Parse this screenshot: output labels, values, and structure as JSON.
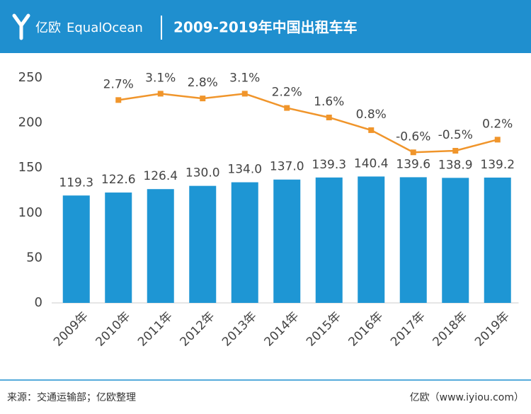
{
  "header": {
    "logo_cn": "亿欧",
    "logo_en": "EqualOcean"
  },
  "chart_data": {
    "type": "bar",
    "title": "2009-2019年中国出租车车",
    "categories": [
      "2009年",
      "2010年",
      "2011年",
      "2012年",
      "2013年",
      "2014年",
      "2015年",
      "2016年",
      "2017年",
      "2018年",
      "2019年"
    ],
    "series": [
      {
        "type": "bar",
        "color": "#1e96d4",
        "values": [
          119.3,
          122.6,
          126.4,
          130.0,
          134.0,
          137.0,
          139.3,
          140.4,
          139.6,
          138.9,
          139.2
        ],
        "value_labels": [
          "119.3",
          "122.6",
          "126.4",
          "130.0",
          "134.0",
          "137.0",
          "139.3",
          "140.4",
          "139.6",
          "138.9",
          "139.2"
        ]
      },
      {
        "type": "line",
        "axis": "y2",
        "color": "#f0952b",
        "values": [
          null,
          2.7,
          3.1,
          2.8,
          3.1,
          2.2,
          1.6,
          0.8,
          -0.6,
          -0.5,
          0.2
        ],
        "value_labels": [
          null,
          "2.7%",
          "3.1%",
          "2.8%",
          "3.1%",
          "2.2%",
          "1.6%",
          "0.8%",
          "-0.6%",
          "-0.5%",
          "0.2%"
        ]
      }
    ],
    "ylim": [
      0,
      250
    ],
    "yticks": [
      0,
      50,
      100,
      150,
      200,
      250
    ],
    "y2lim": [
      -10.1,
      4.1
    ],
    "grid": false,
    "source": "来源：交通运输部；亿欧整理",
    "credit": "亿欧（www.iyiou.com）"
  }
}
